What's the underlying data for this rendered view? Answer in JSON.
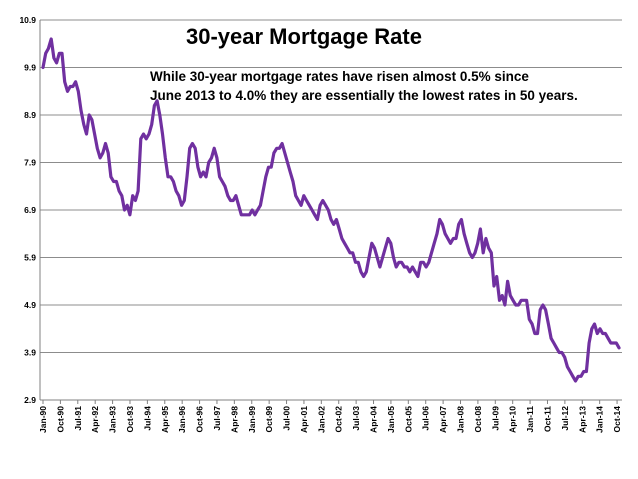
{
  "chart_data": {
    "type": "line",
    "title": "30-year Mortgage Rate",
    "annotation": [
      "While 30-year mortgage rates have risen almost 0.5% since",
      "June 2013 to 4.0% they are essentially the lowest  rates  in 50 years."
    ],
    "xlabel": "",
    "ylabel": "",
    "ylim": [
      2.9,
      10.9
    ],
    "yticks": [
      "10.9",
      "9.9",
      "8.9",
      "7.9",
      "6.9",
      "5.9",
      "4.9",
      "3.9",
      "2.9"
    ],
    "xticks": [
      "Jan-90",
      "Oct-90",
      "Jul-91",
      "Apr-92",
      "Jan-93",
      "Oct-93",
      "Jul-94",
      "Apr-95",
      "Jan-96",
      "Oct-96",
      "Jul-97",
      "Apr-98",
      "Jan-99",
      "Oct-99",
      "Jul-00",
      "Apr-01",
      "Jan-02",
      "Oct-02",
      "Jul-03",
      "Apr-04",
      "Jan-05",
      "Oct-05",
      "Jul-06",
      "Apr-07",
      "Jan-08",
      "Oct-08",
      "Jul-09",
      "Apr-10",
      "Jan-11",
      "Oct-11",
      "Jul-12",
      "Apr-13",
      "Jan-14",
      "Oct-14"
    ],
    "grid": true,
    "line_color": "#7030a0",
    "series": [
      {
        "name": "",
        "x_start": "1990-01",
        "x_end": "2014-11",
        "values": [
          9.9,
          10.2,
          10.3,
          10.5,
          10.1,
          10.0,
          10.2,
          10.2,
          9.6,
          9.4,
          9.5,
          9.5,
          9.6,
          9.4,
          9.0,
          8.7,
          8.5,
          8.9,
          8.8,
          8.5,
          8.2,
          8.0,
          8.1,
          8.3,
          8.1,
          7.6,
          7.5,
          7.5,
          7.3,
          7.2,
          6.9,
          7.0,
          6.8,
          7.2,
          7.1,
          7.3,
          8.4,
          8.5,
          8.4,
          8.5,
          8.7,
          9.1,
          9.2,
          8.9,
          8.5,
          8.0,
          7.6,
          7.6,
          7.5,
          7.3,
          7.2,
          7.0,
          7.1,
          7.6,
          8.2,
          8.3,
          8.2,
          7.8,
          7.6,
          7.7,
          7.6,
          7.9,
          8.0,
          8.2,
          8.0,
          7.6,
          7.5,
          7.4,
          7.2,
          7.1,
          7.1,
          7.2,
          7.0,
          6.8,
          6.8,
          6.8,
          6.8,
          6.9,
          6.8,
          6.9,
          7.0,
          7.3,
          7.6,
          7.8,
          7.8,
          8.1,
          8.2,
          8.2,
          8.3,
          8.1,
          7.9,
          7.7,
          7.5,
          7.2,
          7.1,
          7.0,
          7.2,
          7.1,
          7.0,
          6.9,
          6.8,
          6.7,
          7.0,
          7.1,
          7.0,
          6.9,
          6.7,
          6.6,
          6.7,
          6.5,
          6.3,
          6.2,
          6.1,
          6.0,
          6.0,
          5.8,
          5.8,
          5.6,
          5.5,
          5.6,
          5.9,
          6.2,
          6.1,
          5.9,
          5.7,
          5.9,
          6.1,
          6.3,
          6.2,
          5.9,
          5.7,
          5.8,
          5.8,
          5.7,
          5.7,
          5.6,
          5.7,
          5.6,
          5.5,
          5.8,
          5.8,
          5.7,
          5.8,
          6.0,
          6.2,
          6.4,
          6.7,
          6.6,
          6.4,
          6.3,
          6.2,
          6.3,
          6.3,
          6.6,
          6.7,
          6.4,
          6.2,
          6.0,
          5.9,
          6.0,
          6.2,
          6.5,
          6.0,
          6.3,
          6.1,
          6.0,
          5.3,
          5.5,
          5.0,
          5.1,
          4.9,
          5.4,
          5.1,
          5.0,
          4.9,
          4.9,
          5.0,
          5.0,
          5.0,
          4.6,
          4.5,
          4.3,
          4.3,
          4.8,
          4.9,
          4.8,
          4.5,
          4.2,
          4.1,
          4.0,
          3.9,
          3.9,
          3.8,
          3.6,
          3.5,
          3.4,
          3.3,
          3.4,
          3.4,
          3.5,
          3.5,
          4.1,
          4.4,
          4.5,
          4.3,
          4.4,
          4.3,
          4.3,
          4.2,
          4.1,
          4.1,
          4.1,
          4.0
        ]
      }
    ]
  }
}
